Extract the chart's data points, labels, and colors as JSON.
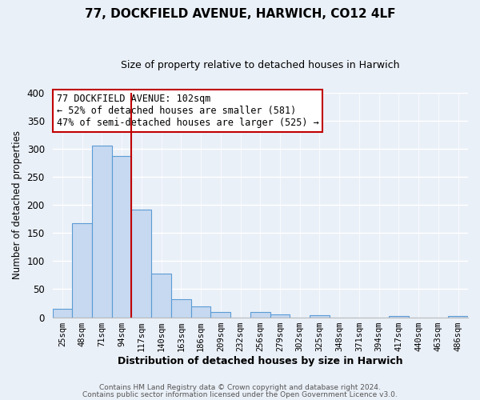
{
  "title": "77, DOCKFIELD AVENUE, HARWICH, CO12 4LF",
  "subtitle": "Size of property relative to detached houses in Harwich",
  "xlabel": "Distribution of detached houses by size in Harwich",
  "ylabel": "Number of detached properties",
  "bin_labels": [
    "25sqm",
    "48sqm",
    "71sqm",
    "94sqm",
    "117sqm",
    "140sqm",
    "163sqm",
    "186sqm",
    "209sqm",
    "232sqm",
    "256sqm",
    "279sqm",
    "302sqm",
    "325sqm",
    "348sqm",
    "371sqm",
    "394sqm",
    "417sqm",
    "440sqm",
    "463sqm",
    "486sqm"
  ],
  "bar_heights": [
    15,
    168,
    305,
    287,
    191,
    78,
    32,
    19,
    9,
    0,
    9,
    5,
    0,
    3,
    0,
    0,
    0,
    2,
    0,
    0,
    2
  ],
  "bar_color": "#c6d9f0",
  "bar_edge_color": "#5b9bd5",
  "vline_pos": 3.5,
  "vline_color": "#c00000",
  "ylim": [
    0,
    400
  ],
  "yticks": [
    0,
    50,
    100,
    150,
    200,
    250,
    300,
    350,
    400
  ],
  "annotation_title": "77 DOCKFIELD AVENUE: 102sqm",
  "annotation_line1": "← 52% of detached houses are smaller (581)",
  "annotation_line2": "47% of semi-detached houses are larger (525) →",
  "annotation_box_color": "#ffffff",
  "annotation_box_edge": "#c00000",
  "footer1": "Contains HM Land Registry data © Crown copyright and database right 2024.",
  "footer2": "Contains public sector information licensed under the Open Government Licence v3.0.",
  "bg_color": "#eaf0f8",
  "plot_bg_color": "#eaf0f8"
}
